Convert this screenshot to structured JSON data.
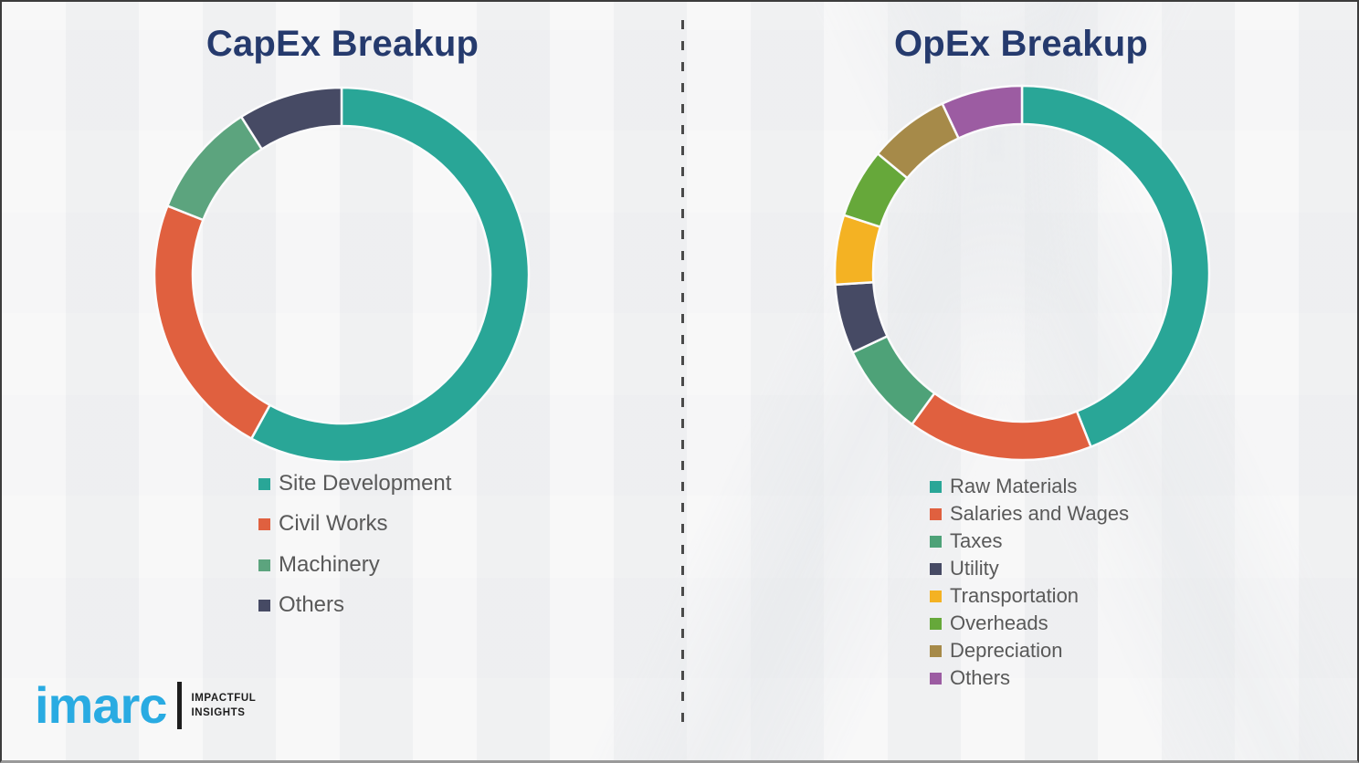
{
  "chart_data": [
    {
      "type": "pie",
      "subtype": "donut",
      "title": "CapEx Breakup",
      "categories": [
        "Site Development",
        "Civil Works",
        "Machinery",
        "Others"
      ],
      "values": [
        58,
        23,
        10,
        9
      ],
      "colors": [
        "#29a697",
        "#e0603f",
        "#5ca47e",
        "#464a64"
      ],
      "legend_position": "below-left",
      "data_labels_shown": false,
      "start_angle_deg": 0
    },
    {
      "type": "pie",
      "subtype": "donut",
      "title": "OpEx Breakup",
      "categories": [
        "Raw Materials",
        "Salaries and Wages",
        "Taxes",
        "Utility",
        "Transportation",
        "Overheads",
        "Depreciation",
        "Others"
      ],
      "values": [
        44,
        16,
        8,
        6,
        6,
        6,
        7,
        7
      ],
      "colors": [
        "#29a697",
        "#e0603f",
        "#4ea278",
        "#464a64",
        "#f4b223",
        "#66a83a",
        "#a68a49",
        "#9c5ca2"
      ],
      "legend_position": "below-left",
      "data_labels_shown": false,
      "start_angle_deg": 0
    }
  ],
  "logo": {
    "brand": "imarc",
    "tagline": [
      "IMPACTFUL",
      "INSIGHTS"
    ],
    "brand_color": "#29abe2"
  },
  "divider": {
    "style": "dashed-vertical",
    "color": "#4a4a4a"
  },
  "theme": {
    "background": "#f2f2f3",
    "title_color": "#253a6d",
    "legend_text_color": "#595959",
    "segment_gap_color": "#fbfbfc"
  }
}
